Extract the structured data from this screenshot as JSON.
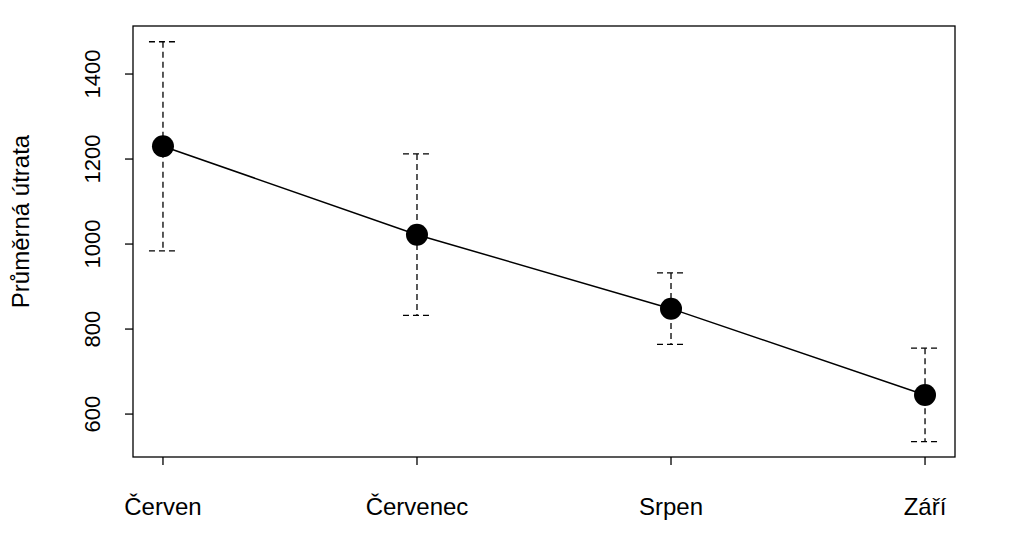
{
  "chart_data": {
    "type": "line",
    "y_label": "Průměrná útrata",
    "categories": [
      "Červen",
      "Červenec",
      "Srpen",
      "Září"
    ],
    "values": [
      1230,
      1022,
      848,
      645
    ],
    "errors": [
      246,
      190,
      84,
      110
    ],
    "ylim": [
      499,
      1513
    ],
    "yticks": [
      600,
      800,
      1000,
      1200,
      1400
    ],
    "color": "#000000",
    "marker": "circle",
    "line_style": "solid"
  }
}
